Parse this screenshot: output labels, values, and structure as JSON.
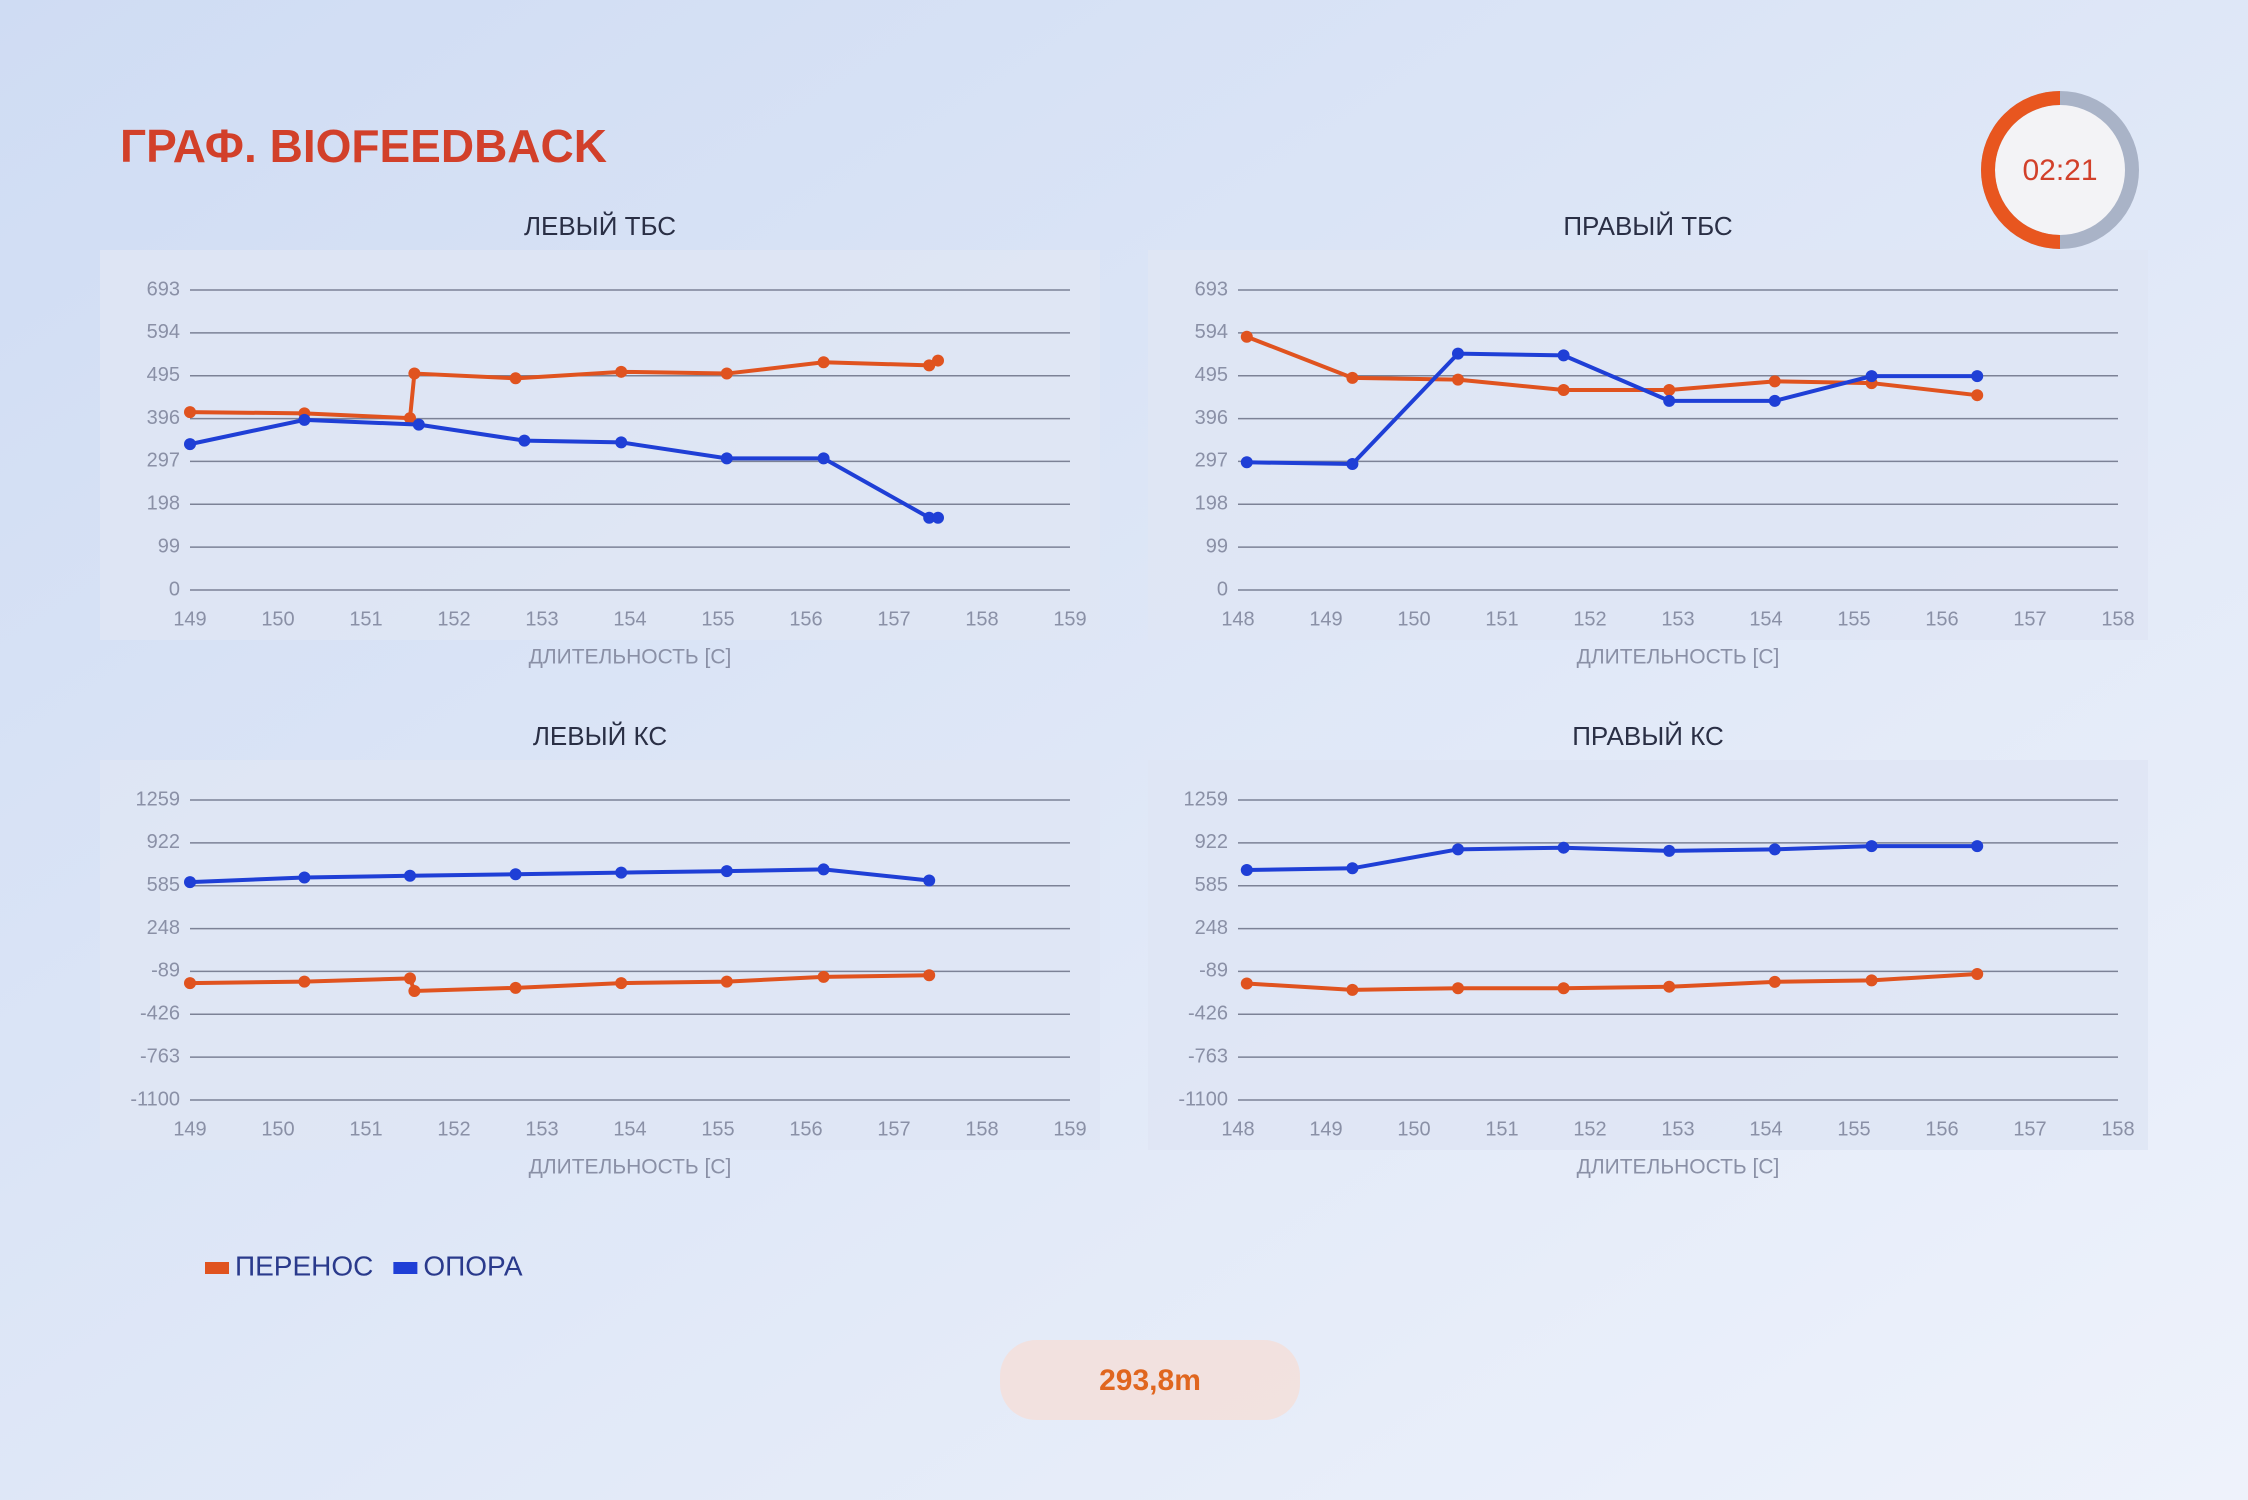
{
  "header": {
    "title": "ГРАФ. BIOFEEDBACK",
    "timer": "02:21"
  },
  "chart_data": [
    {
      "type": "line",
      "title": "ЛЕВЫЙ ТБС",
      "xlabel": "ДЛИТЕЛЬНОСТЬ [С]",
      "xlim": [
        149,
        159
      ],
      "xticks": [
        149,
        150,
        151,
        152,
        153,
        154,
        155,
        156,
        157,
        158,
        159
      ],
      "ylim": [
        0,
        693
      ],
      "yticks": [
        0,
        99,
        198,
        297,
        396,
        495,
        594,
        693
      ],
      "grid": true,
      "series": [
        {
          "color": "#e0531f",
          "x": [
            149.0,
            150.3,
            151.5,
            151.55,
            152.7,
            153.9,
            155.1,
            156.2,
            157.4,
            157.5
          ],
          "values": [
            411,
            408,
            397,
            500,
            489,
            504,
            500,
            526,
            519,
            530
          ]
        },
        {
          "color": "#1f3fd6",
          "x": [
            149.0,
            150.3,
            151.6,
            152.8,
            153.9,
            155.1,
            156.2,
            157.4,
            157.5
          ],
          "values": [
            337,
            393,
            382,
            345,
            341,
            304,
            304,
            167,
            167
          ]
        }
      ]
    },
    {
      "type": "line",
      "title": "ПРАВЫЙ ТБС",
      "xlabel": "ДЛИТЕЛЬНОСТЬ [С]",
      "xlim": [
        148,
        158
      ],
      "xticks": [
        148,
        149,
        150,
        151,
        152,
        153,
        154,
        155,
        156,
        157,
        158
      ],
      "ylim": [
        0,
        693
      ],
      "yticks": [
        0,
        99,
        198,
        297,
        396,
        495,
        594,
        693
      ],
      "grid": true,
      "series": [
        {
          "color": "#e0531f",
          "x": [
            148.1,
            149.3,
            150.5,
            151.7,
            152.9,
            154.1,
            155.2,
            156.4
          ],
          "values": [
            585,
            490,
            486,
            462,
            462,
            482,
            478,
            450
          ]
        },
        {
          "color": "#1f3fd6",
          "x": [
            148.1,
            149.3,
            150.5,
            151.7,
            152.9,
            154.1,
            155.2,
            156.4
          ],
          "values": [
            295,
            291,
            546,
            542,
            437,
            437,
            494,
            494
          ]
        }
      ]
    },
    {
      "type": "line",
      "title": "ЛЕВЫЙ КС",
      "xlabel": "ДЛИТЕЛЬНОСТЬ [С]",
      "xlim": [
        149,
        159
      ],
      "xticks": [
        149,
        150,
        151,
        152,
        153,
        154,
        155,
        156,
        157,
        158,
        159
      ],
      "ylim": [
        -1100,
        1259
      ],
      "yticks": [
        -1100,
        -763,
        -426,
        -89,
        248,
        585,
        922,
        1259
      ],
      "grid": true,
      "series": [
        {
          "color": "#e0531f",
          "x": [
            149.0,
            150.3,
            151.5,
            151.55,
            152.7,
            153.9,
            155.1,
            156.2,
            157.4
          ],
          "values": [
            -181,
            -169,
            -144,
            -243,
            -218,
            -181,
            -169,
            -132,
            -119
          ]
        },
        {
          "color": "#1f3fd6",
          "x": [
            149.0,
            150.3,
            151.5,
            152.7,
            153.9,
            155.1,
            156.2,
            157.4
          ],
          "values": [
            613,
            650,
            663,
            675,
            688,
            700,
            713,
            626
          ]
        }
      ]
    },
    {
      "type": "line",
      "title": "ПРАВЫЙ КС",
      "xlabel": "ДЛИТЕЛЬНОСТЬ [С]",
      "xlim": [
        148,
        158
      ],
      "xticks": [
        148,
        149,
        150,
        151,
        152,
        153,
        154,
        155,
        156,
        157,
        158
      ],
      "ylim": [
        -1100,
        1259
      ],
      "yticks": [
        -1100,
        -763,
        -426,
        -89,
        248,
        585,
        922,
        1259
      ],
      "grid": true,
      "series": [
        {
          "color": "#e0531f",
          "x": [
            148.1,
            149.3,
            150.5,
            151.7,
            152.9,
            154.1,
            155.2,
            156.4
          ],
          "values": [
            -184,
            -234,
            -221,
            -221,
            -209,
            -171,
            -159,
            -109
          ]
        },
        {
          "color": "#1f3fd6",
          "x": [
            148.1,
            149.3,
            150.5,
            151.7,
            152.9,
            154.1,
            155.2,
            156.4
          ],
          "values": [
            709,
            722,
            871,
            884,
            859,
            871,
            896,
            896
          ]
        }
      ]
    }
  ],
  "legend": [
    {
      "name": "ПЕРЕНОС",
      "color": "#e0531f"
    },
    {
      "name": "ОПОРА",
      "color": "#1f3fd6"
    }
  ],
  "distance": "293,8m"
}
